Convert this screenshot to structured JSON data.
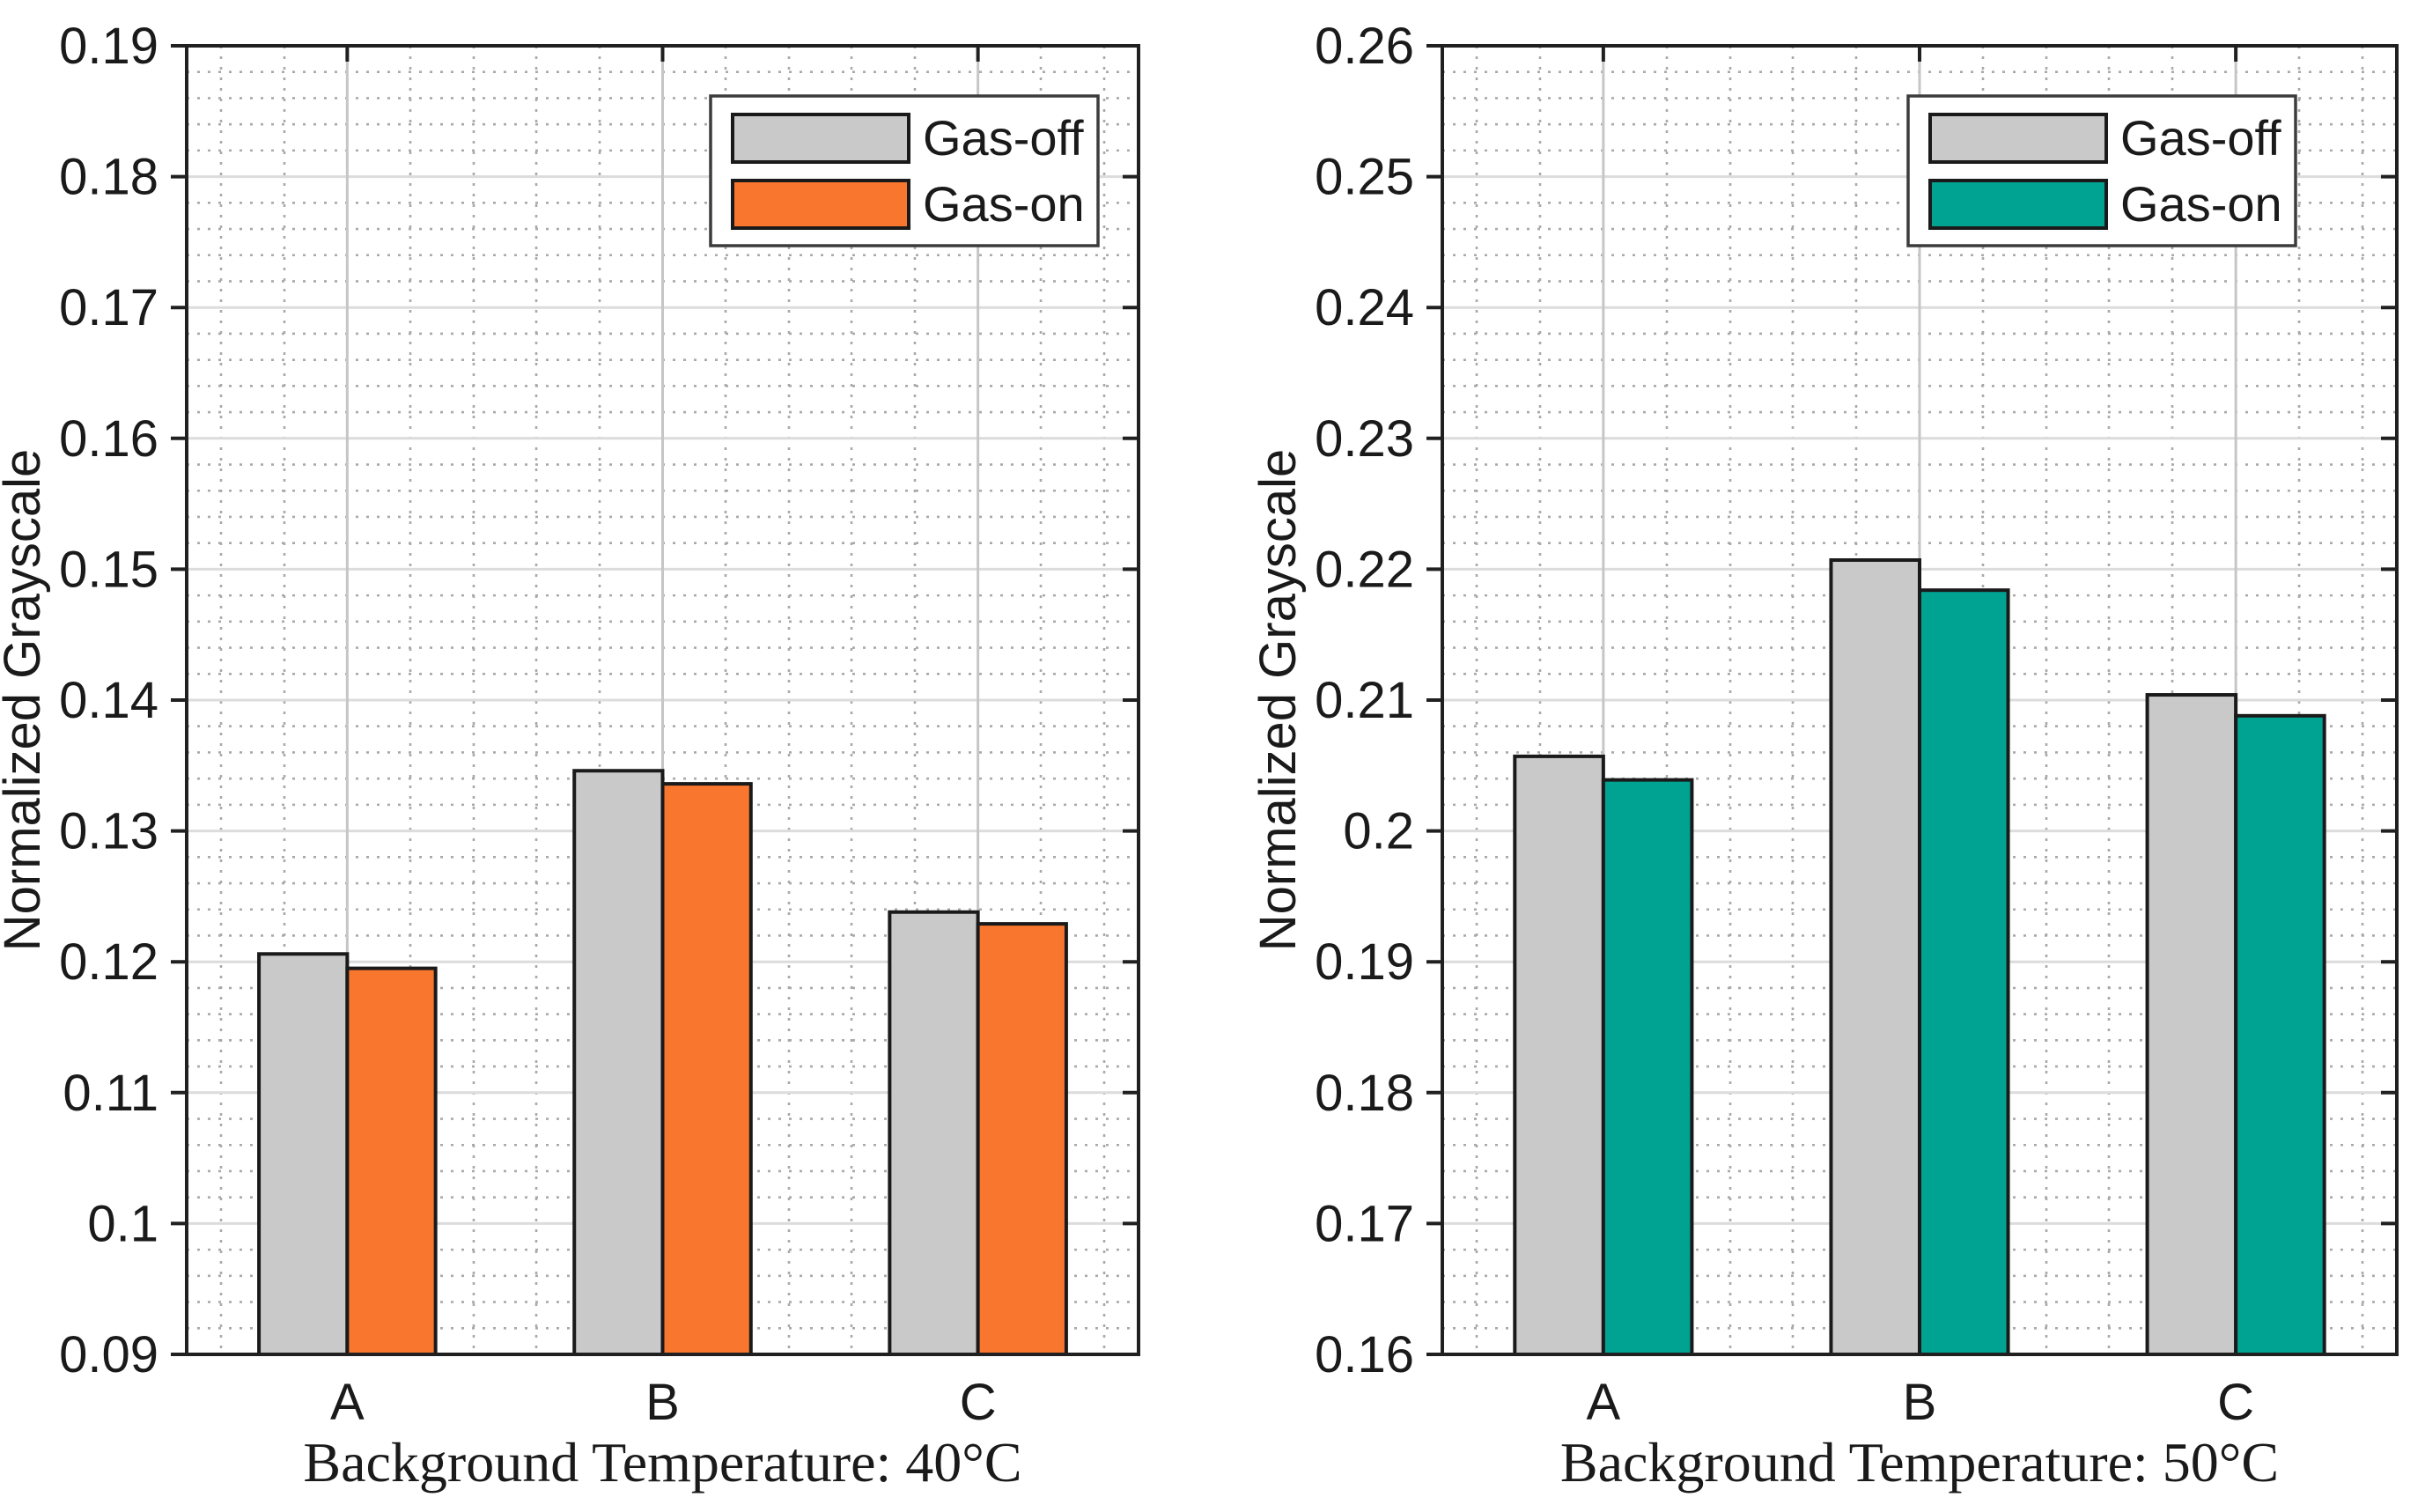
{
  "page": {
    "background": "#ffffff"
  },
  "colors": {
    "axis": "#202020",
    "bar_edge": "#1a1a1a",
    "major_grid": "#dcdcdc",
    "major_grid_vertical": "#c6c6c6",
    "minor_grid": "#a9a9a9",
    "legend_border": "#3c3c3c",
    "gray_series": "#c9c9c9",
    "orange_series": "#f8762e",
    "teal_series": "#00a391",
    "text": "#1a1a1a"
  },
  "chart_data": [
    {
      "type": "bar",
      "title": "",
      "xlabel": "Background Temperature: 40°C",
      "ylabel": "Normalized Grayscale",
      "categories": [
        "A",
        "B",
        "C"
      ],
      "series": [
        {
          "name": "Gas-off",
          "color": "#c9c9c9",
          "values": [
            0.1206,
            0.1346,
            0.1238
          ]
        },
        {
          "name": "Gas-on",
          "color": "#f8762e",
          "values": [
            0.1195,
            0.1336,
            0.1229
          ]
        }
      ],
      "ylim": [
        0.09,
        0.19
      ],
      "ytick_step": 0.01,
      "ytick_labels": [
        "0.09",
        "0.1",
        "0.11",
        "0.12",
        "0.13",
        "0.14",
        "0.15",
        "0.16",
        "0.17",
        "0.18",
        "0.19"
      ],
      "minor_step": 0.002,
      "grid": "major+minor dotted",
      "legend": {
        "labels": [
          "Gas-off",
          "Gas-on"
        ],
        "position": "top-right"
      }
    },
    {
      "type": "bar",
      "title": "",
      "xlabel": "Background Temperature: 50°C",
      "ylabel": "Normalized Grayscale",
      "categories": [
        "A",
        "B",
        "C"
      ],
      "series": [
        {
          "name": "Gas-off",
          "color": "#c9c9c9",
          "values": [
            0.2057,
            0.2207,
            0.2104
          ]
        },
        {
          "name": "Gas-on",
          "color": "#00a391",
          "values": [
            0.2039,
            0.2184,
            0.2088
          ]
        }
      ],
      "ylim": [
        0.16,
        0.26
      ],
      "ytick_step": 0.01,
      "ytick_labels": [
        "0.16",
        "0.17",
        "0.18",
        "0.19",
        "0.2",
        "0.21",
        "0.22",
        "0.23",
        "0.24",
        "0.25",
        "0.26"
      ],
      "minor_step": 0.002,
      "grid": "major+minor dotted",
      "legend": {
        "labels": [
          "Gas-off",
          "Gas-on"
        ],
        "position": "top-right"
      }
    }
  ]
}
